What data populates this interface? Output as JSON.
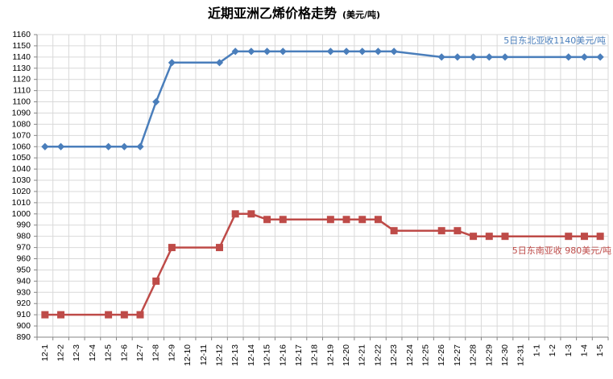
{
  "chart_data": {
    "type": "line",
    "title": "近期亚洲乙烯价格走势",
    "title_unit": "(美元/吨)",
    "xlabel": "",
    "ylabel": "",
    "ylim": [
      890,
      1160
    ],
    "yticks": [
      1160,
      1150,
      1140,
      1130,
      1120,
      1110,
      1100,
      1090,
      1080,
      1070,
      1060,
      1050,
      1040,
      1030,
      1020,
      1010,
      1000,
      990,
      980,
      970,
      960,
      950,
      940,
      930,
      920,
      910,
      900,
      890
    ],
    "grid": true,
    "legend": "none",
    "categories": [
      "12-1",
      "12-2",
      "12-3",
      "12-4",
      "12-5",
      "12-6",
      "12-7",
      "12-8",
      "12-9",
      "12-10",
      "12-11",
      "12-12",
      "12-13",
      "12-14",
      "12-15",
      "12-16",
      "12-17",
      "12-18",
      "12-19",
      "12-20",
      "12-21",
      "12-22",
      "12-23",
      "12-24",
      "12-25",
      "12-26",
      "12-27",
      "12-28",
      "12-29",
      "12-30",
      "12-31",
      "1-1",
      "1-2",
      "1-3",
      "1-4",
      "1-5"
    ],
    "series": [
      {
        "color": "#4a7ebb",
        "marker": "diamond",
        "label": "5日东北亚收1140美元/吨",
        "values": [
          1060,
          1060,
          null,
          null,
          1060,
          1060,
          1060,
          1100,
          1135,
          null,
          null,
          1135,
          1145,
          1145,
          1145,
          1145,
          null,
          null,
          1145,
          1145,
          1145,
          1145,
          1145,
          null,
          null,
          1140,
          1140,
          1140,
          1140,
          1140,
          null,
          null,
          null,
          1140,
          1140,
          1140
        ]
      },
      {
        "color": "#be4b48",
        "marker": "square",
        "label": "5日东南亚收 980美元/吨",
        "values": [
          910,
          910,
          null,
          null,
          910,
          910,
          910,
          940,
          970,
          null,
          null,
          970,
          1000,
          1000,
          995,
          995,
          null,
          null,
          995,
          995,
          995,
          995,
          985,
          null,
          null,
          985,
          985,
          980,
          980,
          980,
          null,
          null,
          null,
          980,
          980,
          980
        ]
      }
    ]
  }
}
